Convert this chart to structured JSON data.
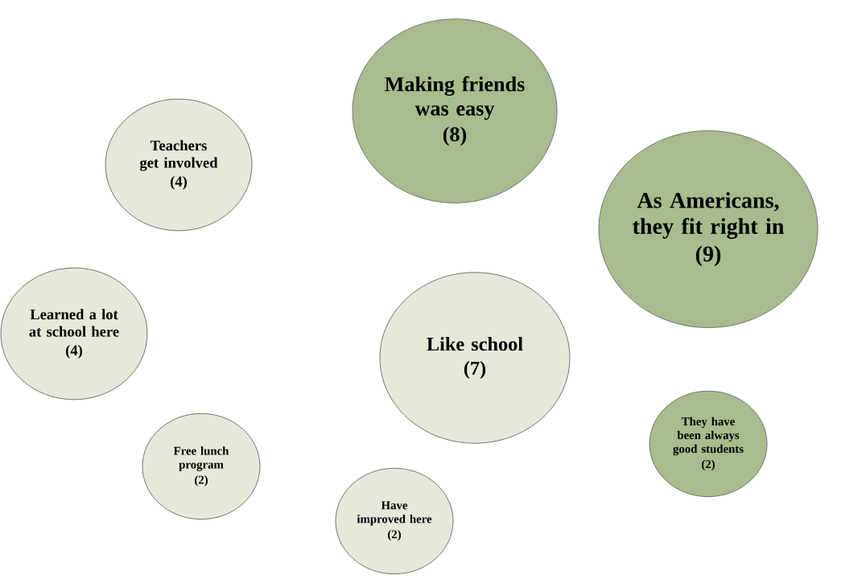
{
  "chart_data": {
    "type": "other",
    "categories": [
      "Teachers get involved",
      "Learned a lot at school here",
      "Free lunch program",
      "Have improved here",
      "Like school",
      "Making friends was easy",
      "As Americans, they fit right in",
      "They have been always good students"
    ],
    "values": [
      4,
      4,
      2,
      2,
      7,
      8,
      9,
      2
    ],
    "value_labels": [
      "(4)",
      "(4)",
      "(2)",
      "(2)",
      "(7)",
      "(8)",
      "(9)",
      "(2)"
    ],
    "colors": [
      "#e4e9da",
      "#e4e9da",
      "#e4e9da",
      "#e4e9da",
      "#e4e9da",
      "#a8bc8d",
      "#a8bc8d",
      "#a8bc8d"
    ]
  }
}
